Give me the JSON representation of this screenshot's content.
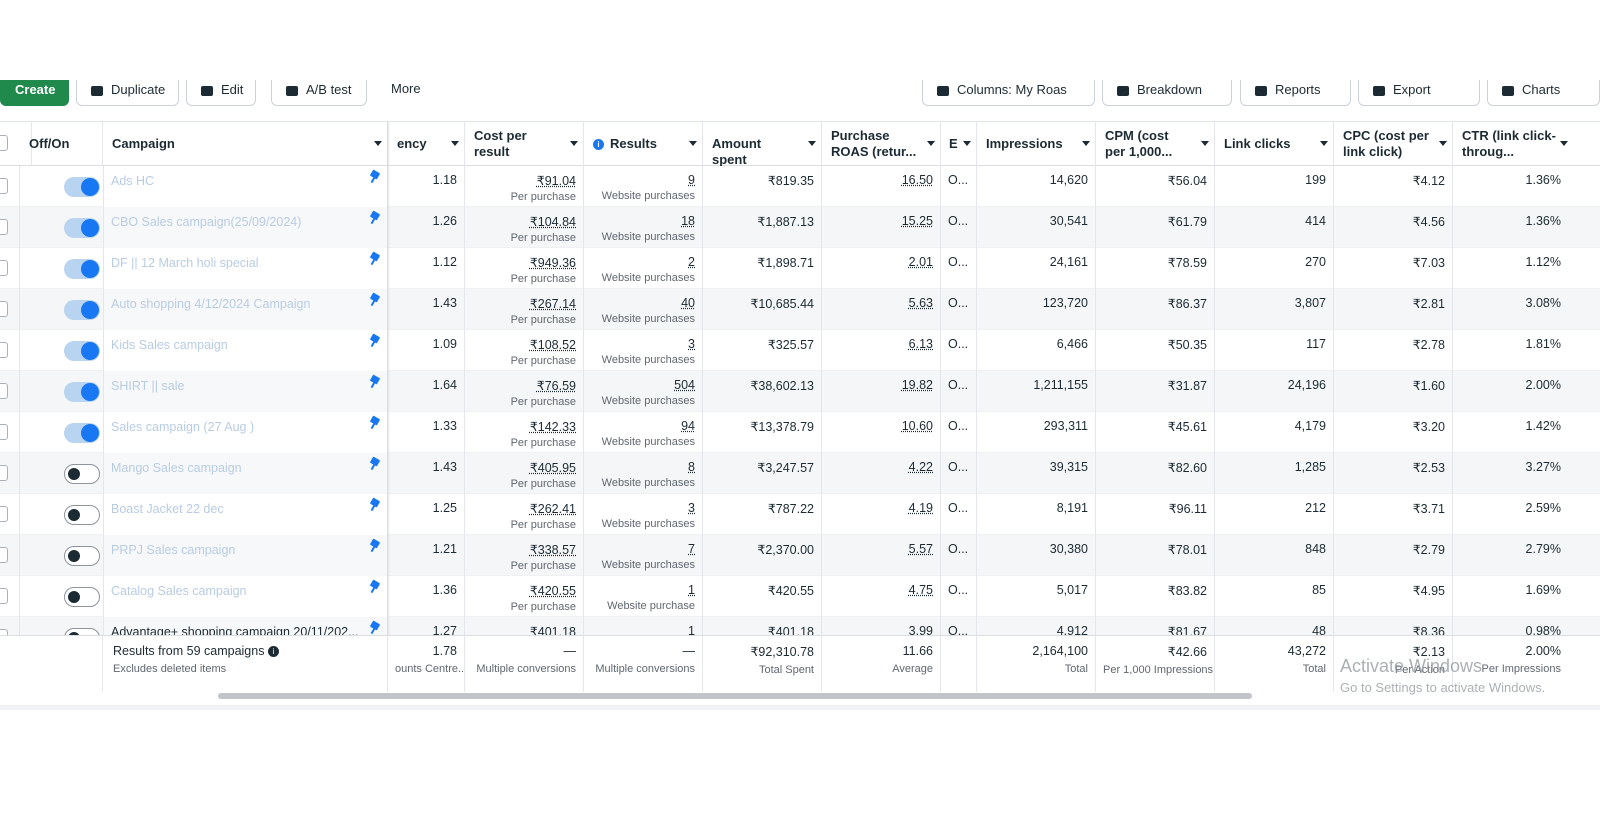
{
  "toolbar": {
    "create": "Create",
    "duplicate": "Duplicate",
    "edit": "Edit",
    "ab_test": "A/B test",
    "more": "More",
    "columns": "Columns: My Roas",
    "breakdown": "Breakdown",
    "reports": "Reports",
    "export": "Export",
    "charts": "Charts"
  },
  "headers": {
    "offon": "Off/On",
    "campaign": "Campaign",
    "frequency": "ency",
    "cost_per_result": "Cost per result",
    "results": "Results",
    "amount_spent": "Amount spent",
    "purchase_roas": "Purchase ROAS (retur...",
    "e": "E",
    "impressions": "Impressions",
    "cpm": "CPM (cost per 1,000...",
    "link_clicks": "Link clicks",
    "cpc": "CPC (cost per link click)",
    "ctr": "CTR (link click-throug..."
  },
  "rows": [
    {
      "on": true,
      "name": "Ads HC",
      "freq": "1.18",
      "cpr": "₹91.04",
      "cpr_sub": "Per purchase",
      "results": "9",
      "results_sub": "Website purchases",
      "spent": "₹819.35",
      "roas": "16.50",
      "e": "O...",
      "impr": "14,620",
      "cpm": "₹56.04",
      "clicks": "199",
      "cpc": "₹4.12",
      "ctr": "1.36%"
    },
    {
      "on": true,
      "name": "CBO Sales campaign(25/09/2024)",
      "freq": "1.26",
      "cpr": "₹104.84",
      "cpr_sub": "Per purchase",
      "results": "18",
      "results_sub": "Website purchases",
      "spent": "₹1,887.13",
      "roas": "15.25",
      "e": "O...",
      "impr": "30,541",
      "cpm": "₹61.79",
      "clicks": "414",
      "cpc": "₹4.56",
      "ctr": "1.36%"
    },
    {
      "on": true,
      "name": "DF || 12 March holi special",
      "freq": "1.12",
      "cpr": "₹949.36",
      "cpr_sub": "Per purchase",
      "results": "2",
      "results_sub": "Website purchases",
      "spent": "₹1,898.71",
      "roas": "2.01",
      "e": "O...",
      "impr": "24,161",
      "cpm": "₹78.59",
      "clicks": "270",
      "cpc": "₹7.03",
      "ctr": "1.12%"
    },
    {
      "on": true,
      "name": "Auto shopping 4/12/2024 Campaign",
      "freq": "1.43",
      "cpr": "₹267.14",
      "cpr_sub": "Per purchase",
      "results": "40",
      "results_sub": "Website purchases",
      "spent": "₹10,685.44",
      "roas": "5.63",
      "e": "O...",
      "impr": "123,720",
      "cpm": "₹86.37",
      "clicks": "3,807",
      "cpc": "₹2.81",
      "ctr": "3.08%"
    },
    {
      "on": true,
      "name": "Kids Sales campaign",
      "freq": "1.09",
      "cpr": "₹108.52",
      "cpr_sub": "Per purchase",
      "results": "3",
      "results_sub": "Website purchases",
      "spent": "₹325.57",
      "roas": "6.13",
      "e": "O...",
      "impr": "6,466",
      "cpm": "₹50.35",
      "clicks": "117",
      "cpc": "₹2.78",
      "ctr": "1.81%"
    },
    {
      "on": true,
      "name": "SHIRT || sale",
      "freq": "1.64",
      "cpr": "₹76.59",
      "cpr_sub": "Per purchase",
      "results": "504",
      "results_sub": "Website purchases",
      "spent": "₹38,602.13",
      "roas": "19.82",
      "e": "O...",
      "impr": "1,211,155",
      "cpm": "₹31.87",
      "clicks": "24,196",
      "cpc": "₹1.60",
      "ctr": "2.00%"
    },
    {
      "on": true,
      "name": "Sales campaign (27 Aug )",
      "freq": "1.33",
      "cpr": "₹142.33",
      "cpr_sub": "Per purchase",
      "results": "94",
      "results_sub": "Website purchases",
      "spent": "₹13,378.79",
      "roas": "10.60",
      "e": "O...",
      "impr": "293,311",
      "cpm": "₹45.61",
      "clicks": "4,179",
      "cpc": "₹3.20",
      "ctr": "1.42%"
    },
    {
      "on": false,
      "name": "Mango Sales campaign",
      "freq": "1.43",
      "cpr": "₹405.95",
      "cpr_sub": "Per purchase",
      "results": "8",
      "results_sub": "Website purchases",
      "spent": "₹3,247.57",
      "roas": "4.22",
      "e": "O...",
      "impr": "39,315",
      "cpm": "₹82.60",
      "clicks": "1,285",
      "cpc": "₹2.53",
      "ctr": "3.27%"
    },
    {
      "on": false,
      "name": "Boast Jacket 22 dec",
      "freq": "1.25",
      "cpr": "₹262.41",
      "cpr_sub": "Per purchase",
      "results": "3",
      "results_sub": "Website purchases",
      "spent": "₹787.22",
      "roas": "4.19",
      "e": "O...",
      "impr": "8,191",
      "cpm": "₹96.11",
      "clicks": "212",
      "cpc": "₹3.71",
      "ctr": "2.59%"
    },
    {
      "on": false,
      "name": "PRPJ Sales campaign",
      "freq": "1.21",
      "cpr": "₹338.57",
      "cpr_sub": "Per purchase",
      "results": "7",
      "results_sub": "Website purchases",
      "spent": "₹2,370.00",
      "roas": "5.57",
      "e": "O...",
      "impr": "30,380",
      "cpm": "₹78.01",
      "clicks": "848",
      "cpc": "₹2.79",
      "ctr": "2.79%"
    },
    {
      "on": false,
      "name": "Catalog Sales campaign",
      "freq": "1.36",
      "cpr": "₹420.55",
      "cpr_sub": "Per purchase",
      "results": "1",
      "results_sub": "Website purchase",
      "spent": "₹420.55",
      "roas": "4.75",
      "e": "O...",
      "impr": "5,017",
      "cpm": "₹83.82",
      "clicks": "85",
      "cpc": "₹4.95",
      "ctr": "1.69%"
    },
    {
      "on": false,
      "name": "Advantage+ shopping campaign 20/11/202...",
      "freq": "1.27",
      "cpr": "₹401.18",
      "cpr_sub": "",
      "results": "1",
      "results_sub": "",
      "spent": "₹401.18",
      "roas": "3.99",
      "e": "O...",
      "impr": "4,912",
      "cpm": "₹81.67",
      "clicks": "48",
      "cpc": "₹8.36",
      "ctr": "0.98%"
    }
  ],
  "totals": {
    "label": "Results from 59 campaigns",
    "label_sub": "Excludes deleted items",
    "freq": "1.78",
    "freq_sub": "ounts Centre...",
    "cpr": "—",
    "cpr_sub": "Multiple conversions",
    "results": "—",
    "results_sub": "Multiple conversions",
    "spent": "₹92,310.78",
    "spent_sub": "Total Spent",
    "roas": "11.66",
    "roas_sub": "Average",
    "impr": "2,164,100",
    "impr_sub": "Total",
    "cpm": "₹42.66",
    "cpm_sub": "Per 1,000 Impressions",
    "clicks": "43,272",
    "clicks_sub": "Total",
    "cpc": "₹2.13",
    "cpc_sub": "Per Action",
    "ctr": "2.00%",
    "ctr_sub": "Per Impressions"
  },
  "watermark": {
    "line1": "Activate Windows",
    "line2": "Go to Settings to activate Windows."
  },
  "colors": {
    "accent": "#1877f2",
    "create": "#1f8a4c"
  }
}
